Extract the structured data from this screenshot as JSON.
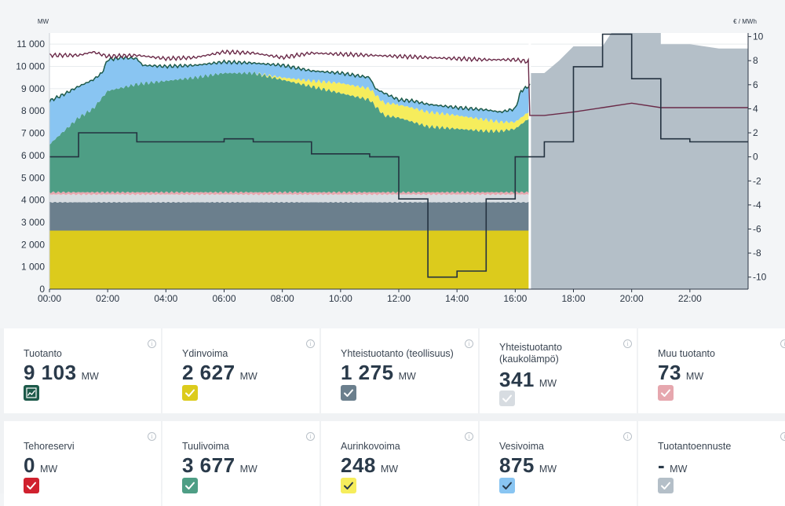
{
  "chart_data": {
    "type": "area",
    "xlabel": "",
    "ylabel": "MW",
    "ylabel_right": "€ / MWh",
    "x_ticks": [
      "00:00",
      "02:00",
      "04:00",
      "06:00",
      "08:00",
      "10:00",
      "12:00",
      "14:00",
      "16:00",
      "18:00",
      "20:00",
      "22:00"
    ],
    "y_ticks": [
      "0",
      "1 000",
      "2 000",
      "3 000",
      "4 000",
      "5 000",
      "6 000",
      "7 000",
      "8 000",
      "9 000",
      "10 000",
      "11 000"
    ],
    "y2_ticks": [
      "-10",
      "-8",
      "-6",
      "-4",
      "-2",
      "0",
      "2",
      "4",
      "6",
      "8",
      "10"
    ],
    "ylim": [
      0,
      11500
    ],
    "y2lim": [
      -11,
      10.3
    ],
    "xlim_hours": [
      0,
      24
    ],
    "now_hour": 16.5,
    "colors": {
      "nuclear": "#dccb1c",
      "chp_industry": "#6b7f8d",
      "chp_district": "#d7dce1",
      "other": "#e6a7ae",
      "wind": "#4e9e85",
      "solar": "#f6ed5c",
      "hydro": "#89c5f2",
      "forecast": "#b4bfc8",
      "total_line": "#1d5a4a",
      "consumption_line": "#6a2a48",
      "price_line": "#243240"
    },
    "total_production_mw": [
      [
        0,
        8450
      ],
      [
        0.5,
        8750
      ],
      [
        1,
        9100
      ],
      [
        1.5,
        9400
      ],
      [
        1.8,
        9700
      ],
      [
        2,
        10300
      ],
      [
        2.5,
        10400
      ],
      [
        3,
        10350
      ],
      [
        3.2,
        10050
      ],
      [
        4,
        10000
      ],
      [
        5,
        10050
      ],
      [
        6,
        10200
      ],
      [
        7,
        10150
      ],
      [
        8,
        10050
      ],
      [
        9,
        9800
      ],
      [
        10,
        9700
      ],
      [
        11,
        9500
      ],
      [
        11.2,
        9000
      ],
      [
        11.5,
        8800
      ],
      [
        12,
        8500
      ],
      [
        12.5,
        8450
      ],
      [
        13,
        8300
      ],
      [
        14,
        8150
      ],
      [
        15,
        8050
      ],
      [
        15.5,
        7950
      ],
      [
        16,
        8100
      ],
      [
        16.2,
        8900
      ],
      [
        16.5,
        9150
      ]
    ],
    "hydro_mw": [
      [
        0,
        950
      ],
      [
        2,
        600
      ],
      [
        4,
        500
      ],
      [
        6,
        500
      ],
      [
        8,
        450
      ],
      [
        10,
        500
      ],
      [
        12,
        700
      ],
      [
        14,
        800
      ],
      [
        16,
        900
      ],
      [
        16.5,
        900
      ]
    ],
    "solar_mw": [
      [
        0,
        0
      ],
      [
        7,
        0
      ],
      [
        8,
        100
      ],
      [
        9,
        250
      ],
      [
        10,
        450
      ],
      [
        11,
        500
      ],
      [
        12,
        600
      ],
      [
        13,
        650
      ],
      [
        14,
        600
      ],
      [
        15,
        500
      ],
      [
        16,
        300
      ],
      [
        16.5,
        300
      ]
    ],
    "wind_top_mw": [
      [
        0,
        6500
      ],
      [
        0.5,
        7100
      ],
      [
        1,
        7700
      ],
      [
        1.5,
        8100
      ],
      [
        2,
        8900
      ],
      [
        3,
        9200
      ],
      [
        4,
        9350
      ],
      [
        5,
        9500
      ],
      [
        6,
        9700
      ],
      [
        7,
        9700
      ],
      [
        8,
        9400
      ],
      [
        9,
        9100
      ],
      [
        10,
        8800
      ],
      [
        11,
        8500
      ],
      [
        11.5,
        7800
      ],
      [
        12,
        7700
      ],
      [
        13,
        7300
      ],
      [
        14,
        7200
      ],
      [
        15,
        7100
      ],
      [
        15.5,
        7100
      ],
      [
        16,
        7200
      ],
      [
        16.5,
        7700
      ]
    ],
    "other_top_mw": 4350,
    "chp_district_top_mw": 4250,
    "chp_industry_top_mw": 3900,
    "nuclear_top_mw": 2627,
    "forecast_mw": [
      [
        16.5,
        9700
      ],
      [
        17,
        9700
      ],
      [
        17.5,
        10250
      ],
      [
        18,
        10900
      ],
      [
        19,
        10900
      ],
      [
        19.3,
        11500
      ],
      [
        20,
        11500
      ],
      [
        21,
        11500
      ],
      [
        21,
        11000
      ],
      [
        22,
        11000
      ],
      [
        23,
        10800
      ],
      [
        24,
        10800
      ]
    ],
    "consumption_mw": [
      [
        0,
        10500
      ],
      [
        1,
        10500
      ],
      [
        1.5,
        10650
      ],
      [
        2,
        10450
      ],
      [
        3,
        10500
      ],
      [
        4,
        10350
      ],
      [
        5,
        10400
      ],
      [
        6,
        10650
      ],
      [
        7,
        10600
      ],
      [
        8,
        10400
      ],
      [
        9,
        10600
      ],
      [
        10,
        10550
      ],
      [
        11,
        10500
      ],
      [
        12,
        10450
      ],
      [
        13,
        10400
      ],
      [
        14,
        10350
      ],
      [
        15,
        10300
      ],
      [
        16,
        10300
      ],
      [
        16.5,
        10200
      ],
      [
        16.5,
        7800
      ],
      [
        17,
        7800
      ],
      [
        18,
        7950
      ],
      [
        19,
        8150
      ],
      [
        20,
        8350
      ],
      [
        21,
        8150
      ],
      [
        22,
        8150
      ],
      [
        24,
        8150
      ]
    ],
    "price_eur": [
      [
        0,
        0
      ],
      [
        1,
        0
      ],
      [
        1,
        2
      ],
      [
        3,
        2
      ],
      [
        3,
        1.25
      ],
      [
        6,
        1.25
      ],
      [
        6,
        1.5
      ],
      [
        7,
        1.5
      ],
      [
        7,
        1.25
      ],
      [
        9,
        1.25
      ],
      [
        9,
        0.25
      ],
      [
        11,
        0.25
      ],
      [
        11,
        0
      ],
      [
        12,
        0
      ],
      [
        12,
        -3.5
      ],
      [
        13,
        -3.5
      ],
      [
        13,
        -10
      ],
      [
        14,
        -10
      ],
      [
        14,
        -9.5
      ],
      [
        15,
        -9.5
      ],
      [
        15,
        -3.5
      ],
      [
        16,
        -3.5
      ],
      [
        16,
        0
      ],
      [
        17,
        0
      ],
      [
        17,
        1.25
      ],
      [
        18,
        1.25
      ],
      [
        18,
        7.5
      ],
      [
        19,
        7.5
      ],
      [
        19,
        10.2
      ],
      [
        20,
        10.2
      ],
      [
        20,
        6.5
      ],
      [
        21,
        6.5
      ],
      [
        21,
        1.5
      ],
      [
        22,
        1.5
      ],
      [
        22,
        1.25
      ],
      [
        24,
        1.25
      ]
    ]
  },
  "cards": [
    {
      "title": "Tuotanto",
      "value": "9 103",
      "unit": "MW",
      "check_color": "#1d5a4a",
      "icon": "chart-icon"
    },
    {
      "title": "Ydinvoima",
      "value": "2 627",
      "unit": "MW",
      "check_color": "#dccb1c",
      "icon": "check-icon"
    },
    {
      "title": "Yhteistuotanto (teollisuus)",
      "value": "1 275",
      "unit": "MW",
      "check_color": "#6b7f8d",
      "icon": "check-icon"
    },
    {
      "title": "Yhteistuotanto (kaukolämpö)",
      "value": "341",
      "unit": "MW",
      "check_color": "#d7dce1",
      "icon": "check-icon"
    },
    {
      "title": "Muu tuotanto",
      "value": "73",
      "unit": "MW",
      "check_color": "#e6a7ae",
      "icon": "check-icon"
    },
    {
      "title": "Tehoreservi",
      "value": "0",
      "unit": "MW",
      "check_color": "#d0212e",
      "icon": "check-icon"
    },
    {
      "title": "Tuulivoima",
      "value": "3 677",
      "unit": "MW",
      "check_color": "#4e9e85",
      "icon": "check-icon"
    },
    {
      "title": "Aurinkovoima",
      "value": "248",
      "unit": "MW",
      "check_color": "#f6ed5c",
      "icon": "check-icon"
    },
    {
      "title": "Vesivoima",
      "value": "875",
      "unit": "MW",
      "check_color": "#89c5f2",
      "icon": "check-icon"
    },
    {
      "title": "Tuotantoennuste",
      "value": "-",
      "unit": "MW",
      "check_color": "#b4bfc8",
      "icon": "check-icon"
    }
  ]
}
